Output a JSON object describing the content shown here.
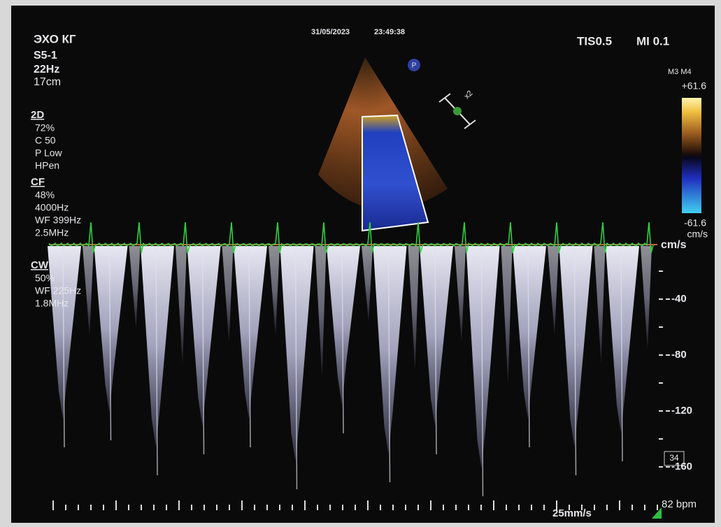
{
  "header": {
    "exam": "ЭХО КГ",
    "date": "31/05/2023",
    "time": "23:49:38",
    "tis": "TIS0.5",
    "mi": "MI 0.1"
  },
  "left_panel": {
    "probe": "S5-1",
    "frame_rate": "22Hz",
    "depth": "17cm",
    "modes": [
      {
        "name": "2D",
        "settings": [
          "72%",
          "C 50",
          "P Low",
          "HPen"
        ]
      },
      {
        "name": "CF",
        "settings": [
          "48%",
          "4000Hz",
          "WF 399Hz",
          "2.5MHz"
        ]
      },
      {
        "name": "CW",
        "settings": [
          "50%",
          "WF 225Hz",
          "1.8MHz"
        ]
      }
    ]
  },
  "color_bar": {
    "map": "M3 M4",
    "max": "+61.6",
    "min": "-61.6",
    "unit": "cm/s"
  },
  "image_markers": {
    "orientation": "P",
    "zoom": "x2"
  },
  "doppler_scale": {
    "unit": "cm/s",
    "labels": [
      "-40",
      "-80",
      "-120",
      "-160"
    ]
  },
  "footer": {
    "frame": "34",
    "sweep": "25mm/s",
    "heart_rate": "82 bpm"
  }
}
